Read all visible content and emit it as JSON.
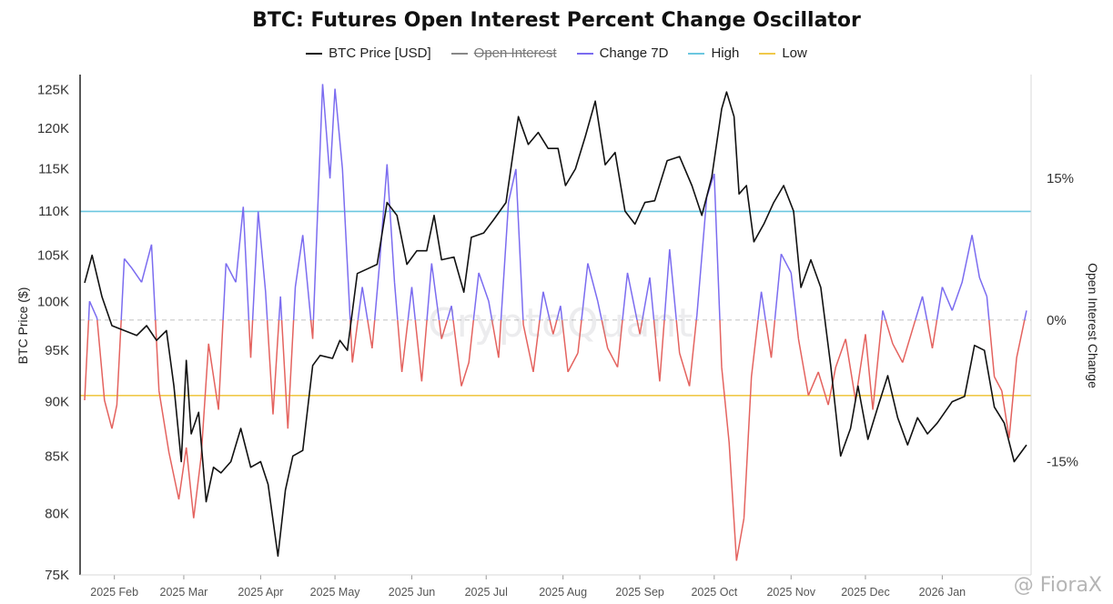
{
  "title": "BTC: Futures Open Interest Percent Change Oscillator",
  "watermark": "CryptoQuant",
  "credit": "@ FioraX",
  "legend": [
    {
      "label": "BTC Price [USD]",
      "color": "#111111",
      "active": true
    },
    {
      "label": "Open Interest",
      "color": "#888888",
      "active": false
    },
    {
      "label": "Change 7D",
      "color": "#7b6cf0",
      "active": true
    },
    {
      "label": "High",
      "color": "#6cc7e0",
      "active": true
    },
    {
      "label": "Low",
      "color": "#f0c94a",
      "active": true
    }
  ],
  "chart_data": {
    "type": "line",
    "left_axis": {
      "label": "BTC Price ($)",
      "scale": "log",
      "ticks": [
        "75K",
        "80K",
        "85K",
        "90K",
        "95K",
        "100K",
        "105K",
        "110K",
        "115K",
        "120K",
        "125K"
      ],
      "range": [
        75000,
        127000
      ]
    },
    "right_axis": {
      "label": "Open Interest Change",
      "ticks": [
        "15%",
        "0%",
        "-15%"
      ],
      "range": [
        -27,
        26
      ]
    },
    "x_ticks": [
      "2025 Feb",
      "2025 Mar",
      "2025 Apr",
      "2025 May",
      "2025 Jun",
      "2025 Jul",
      "2025 Aug",
      "2025 Sep",
      "2025 Oct",
      "2025 Nov",
      "2025 Dec",
      "2026 Jan"
    ],
    "x_range": [
      "2025-01-20",
      "2026-02-04"
    ],
    "reference_lines": {
      "high": 11.5,
      "low": -8.0,
      "zero": 0
    },
    "series": [
      {
        "name": "BTC Price [USD]",
        "color": "#111111",
        "points": [
          [
            "2025-01-20",
            102000
          ],
          [
            "2025-01-23",
            105000
          ],
          [
            "2025-01-27",
            100500
          ],
          [
            "2025-01-31",
            97500
          ],
          [
            "2025-02-05",
            97000
          ],
          [
            "2025-02-10",
            96500
          ],
          [
            "2025-02-14",
            97500
          ],
          [
            "2025-02-18",
            96000
          ],
          [
            "2025-02-22",
            97000
          ],
          [
            "2025-02-25",
            91500
          ],
          [
            "2025-02-28",
            84500
          ],
          [
            "2025-03-02",
            94000
          ],
          [
            "2025-03-04",
            87000
          ],
          [
            "2025-03-07",
            89000
          ],
          [
            "2025-03-10",
            81000
          ],
          [
            "2025-03-13",
            84000
          ],
          [
            "2025-03-16",
            83500
          ],
          [
            "2025-03-20",
            84500
          ],
          [
            "2025-03-24",
            87500
          ],
          [
            "2025-03-28",
            84000
          ],
          [
            "2025-04-01",
            84500
          ],
          [
            "2025-04-04",
            82500
          ],
          [
            "2025-04-08",
            76500
          ],
          [
            "2025-04-11",
            82000
          ],
          [
            "2025-04-14",
            85000
          ],
          [
            "2025-04-18",
            85500
          ],
          [
            "2025-04-22",
            93500
          ],
          [
            "2025-04-25",
            94500
          ],
          [
            "2025-04-30",
            94200
          ],
          [
            "2025-05-03",
            96000
          ],
          [
            "2025-05-06",
            95000
          ],
          [
            "2025-05-10",
            103000
          ],
          [
            "2025-05-14",
            103500
          ],
          [
            "2025-05-18",
            104000
          ],
          [
            "2025-05-22",
            111000
          ],
          [
            "2025-05-26",
            109500
          ],
          [
            "2025-05-30",
            104000
          ],
          [
            "2025-06-03",
            105500
          ],
          [
            "2025-06-07",
            105500
          ],
          [
            "2025-06-10",
            109500
          ],
          [
            "2025-06-13",
            104500
          ],
          [
            "2025-06-18",
            104800
          ],
          [
            "2025-06-22",
            101000
          ],
          [
            "2025-06-25",
            107000
          ],
          [
            "2025-06-30",
            107500
          ],
          [
            "2025-07-04",
            109000
          ],
          [
            "2025-07-09",
            111000
          ],
          [
            "2025-07-14",
            121500
          ],
          [
            "2025-07-18",
            118000
          ],
          [
            "2025-07-22",
            119500
          ],
          [
            "2025-07-26",
            117500
          ],
          [
            "2025-07-30",
            117500
          ],
          [
            "2025-08-02",
            113000
          ],
          [
            "2025-08-06",
            115000
          ],
          [
            "2025-08-10",
            119000
          ],
          [
            "2025-08-14",
            123500
          ],
          [
            "2025-08-18",
            115500
          ],
          [
            "2025-08-22",
            117000
          ],
          [
            "2025-08-26",
            110000
          ],
          [
            "2025-08-30",
            108500
          ],
          [
            "2025-09-03",
            111000
          ],
          [
            "2025-09-07",
            111200
          ],
          [
            "2025-09-12",
            116000
          ],
          [
            "2025-09-17",
            116500
          ],
          [
            "2025-09-22",
            113000
          ],
          [
            "2025-09-26",
            109500
          ],
          [
            "2025-09-30",
            114000
          ],
          [
            "2025-10-04",
            122500
          ],
          [
            "2025-10-06",
            124700
          ],
          [
            "2025-10-09",
            121500
          ],
          [
            "2025-10-11",
            112000
          ],
          [
            "2025-10-14",
            113000
          ],
          [
            "2025-10-17",
            106500
          ],
          [
            "2025-10-21",
            108500
          ],
          [
            "2025-10-25",
            111000
          ],
          [
            "2025-10-29",
            113000
          ],
          [
            "2025-11-02",
            110000
          ],
          [
            "2025-11-05",
            101500
          ],
          [
            "2025-11-09",
            104500
          ],
          [
            "2025-11-13",
            101500
          ],
          [
            "2025-11-17",
            93500
          ],
          [
            "2025-11-21",
            85000
          ],
          [
            "2025-11-25",
            87500
          ],
          [
            "2025-11-28",
            91500
          ],
          [
            "2025-12-02",
            86500
          ],
          [
            "2025-12-06",
            89500
          ],
          [
            "2025-12-10",
            92500
          ],
          [
            "2025-12-14",
            88500
          ],
          [
            "2025-12-18",
            86000
          ],
          [
            "2025-12-22",
            88500
          ],
          [
            "2025-12-26",
            87000
          ],
          [
            "2025-12-30",
            88000
          ],
          [
            "2026-01-05",
            90000
          ],
          [
            "2026-01-10",
            90500
          ],
          [
            "2026-01-14",
            95500
          ],
          [
            "2026-01-18",
            95000
          ],
          [
            "2026-01-22",
            89500
          ],
          [
            "2026-01-26",
            88000
          ],
          [
            "2026-01-30",
            84500
          ],
          [
            "2026-02-04",
            86000
          ]
        ]
      },
      {
        "name": "Change 7D",
        "color_above": "#7b6cf0",
        "color_below": "#e4635f",
        "points": [
          [
            "2025-01-20",
            -8.5
          ],
          [
            "2025-01-22",
            2.0
          ],
          [
            "2025-01-25",
            0.2
          ],
          [
            "2025-01-28",
            -8.5
          ],
          [
            "2025-01-31",
            -11.5
          ],
          [
            "2025-02-02",
            -9.0
          ],
          [
            "2025-02-05",
            6.5
          ],
          [
            "2025-02-08",
            5.5
          ],
          [
            "2025-02-12",
            4.0
          ],
          [
            "2025-02-16",
            8.0
          ],
          [
            "2025-02-19",
            -7.5
          ],
          [
            "2025-02-23",
            -14.0
          ],
          [
            "2025-02-27",
            -19.0
          ],
          [
            "2025-03-02",
            -13.5
          ],
          [
            "2025-03-05",
            -21.0
          ],
          [
            "2025-03-08",
            -14.5
          ],
          [
            "2025-03-11",
            -2.5
          ],
          [
            "2025-03-15",
            -9.5
          ],
          [
            "2025-03-18",
            6.0
          ],
          [
            "2025-03-22",
            4.0
          ],
          [
            "2025-03-25",
            12.0
          ],
          [
            "2025-03-28",
            -4.0
          ],
          [
            "2025-03-31",
            11.5
          ],
          [
            "2025-04-03",
            3.0
          ],
          [
            "2025-04-06",
            -10.0
          ],
          [
            "2025-04-09",
            2.5
          ],
          [
            "2025-04-12",
            -11.5
          ],
          [
            "2025-04-15",
            3.5
          ],
          [
            "2025-04-18",
            9.0
          ],
          [
            "2025-04-22",
            -2.0
          ],
          [
            "2025-04-26",
            25.0
          ],
          [
            "2025-04-29",
            15.0
          ],
          [
            "2025-05-01",
            24.5
          ],
          [
            "2025-05-04",
            16.0
          ],
          [
            "2025-05-08",
            -4.5
          ],
          [
            "2025-05-12",
            3.5
          ],
          [
            "2025-05-16",
            -3.0
          ],
          [
            "2025-05-19",
            6.0
          ],
          [
            "2025-05-22",
            16.5
          ],
          [
            "2025-05-25",
            4.0
          ],
          [
            "2025-05-28",
            -5.5
          ],
          [
            "2025-06-01",
            3.5
          ],
          [
            "2025-06-05",
            -6.5
          ],
          [
            "2025-06-09",
            6.0
          ],
          [
            "2025-06-13",
            -2.0
          ],
          [
            "2025-06-17",
            1.5
          ],
          [
            "2025-06-21",
            -7.0
          ],
          [
            "2025-06-24",
            -4.5
          ],
          [
            "2025-06-28",
            5.0
          ],
          [
            "2025-07-02",
            2.0
          ],
          [
            "2025-07-06",
            -4.0
          ],
          [
            "2025-07-10",
            12.5
          ],
          [
            "2025-07-13",
            16.0
          ],
          [
            "2025-07-16",
            -0.5
          ],
          [
            "2025-07-20",
            -5.5
          ],
          [
            "2025-07-24",
            3.0
          ],
          [
            "2025-07-28",
            -1.5
          ],
          [
            "2025-07-31",
            1.5
          ],
          [
            "2025-08-03",
            -5.5
          ],
          [
            "2025-08-07",
            -3.5
          ],
          [
            "2025-08-11",
            6.0
          ],
          [
            "2025-08-15",
            2.0
          ],
          [
            "2025-08-19",
            -3.0
          ],
          [
            "2025-08-23",
            -5.0
          ],
          [
            "2025-08-27",
            5.0
          ],
          [
            "2025-09-01",
            -1.5
          ],
          [
            "2025-09-05",
            4.5
          ],
          [
            "2025-09-09",
            -6.5
          ],
          [
            "2025-09-13",
            7.5
          ],
          [
            "2025-09-17",
            -3.5
          ],
          [
            "2025-09-21",
            -7.0
          ],
          [
            "2025-09-24",
            0.5
          ],
          [
            "2025-09-28",
            13.0
          ],
          [
            "2025-10-01",
            15.5
          ],
          [
            "2025-10-04",
            -5.0
          ],
          [
            "2025-10-07",
            -13.0
          ],
          [
            "2025-10-10",
            -25.5
          ],
          [
            "2025-10-13",
            -21.0
          ],
          [
            "2025-10-16",
            -6.0
          ],
          [
            "2025-10-20",
            3.0
          ],
          [
            "2025-10-24",
            -4.0
          ],
          [
            "2025-10-28",
            7.0
          ],
          [
            "2025-11-01",
            5.0
          ],
          [
            "2025-11-04",
            -2.0
          ],
          [
            "2025-11-08",
            -8.0
          ],
          [
            "2025-11-12",
            -5.5
          ],
          [
            "2025-11-16",
            -9.0
          ],
          [
            "2025-11-19",
            -5.0
          ],
          [
            "2025-11-23",
            -2.0
          ],
          [
            "2025-11-27",
            -8.5
          ],
          [
            "2025-12-01",
            -1.5
          ],
          [
            "2025-12-04",
            -9.5
          ],
          [
            "2025-12-08",
            1.0
          ],
          [
            "2025-12-12",
            -2.5
          ],
          [
            "2025-12-16",
            -4.5
          ],
          [
            "2025-12-20",
            -1.0
          ],
          [
            "2025-12-24",
            2.5
          ],
          [
            "2025-12-28",
            -3.0
          ],
          [
            "2026-01-01",
            3.5
          ],
          [
            "2026-01-05",
            1.0
          ],
          [
            "2026-01-09",
            4.0
          ],
          [
            "2026-01-13",
            9.0
          ],
          [
            "2026-01-16",
            4.5
          ],
          [
            "2026-01-19",
            2.5
          ],
          [
            "2026-01-22",
            -6.0
          ],
          [
            "2026-01-25",
            -7.5
          ],
          [
            "2026-01-28",
            -12.5
          ],
          [
            "2026-01-31",
            -4.0
          ],
          [
            "2026-02-04",
            1.0
          ]
        ]
      }
    ]
  }
}
